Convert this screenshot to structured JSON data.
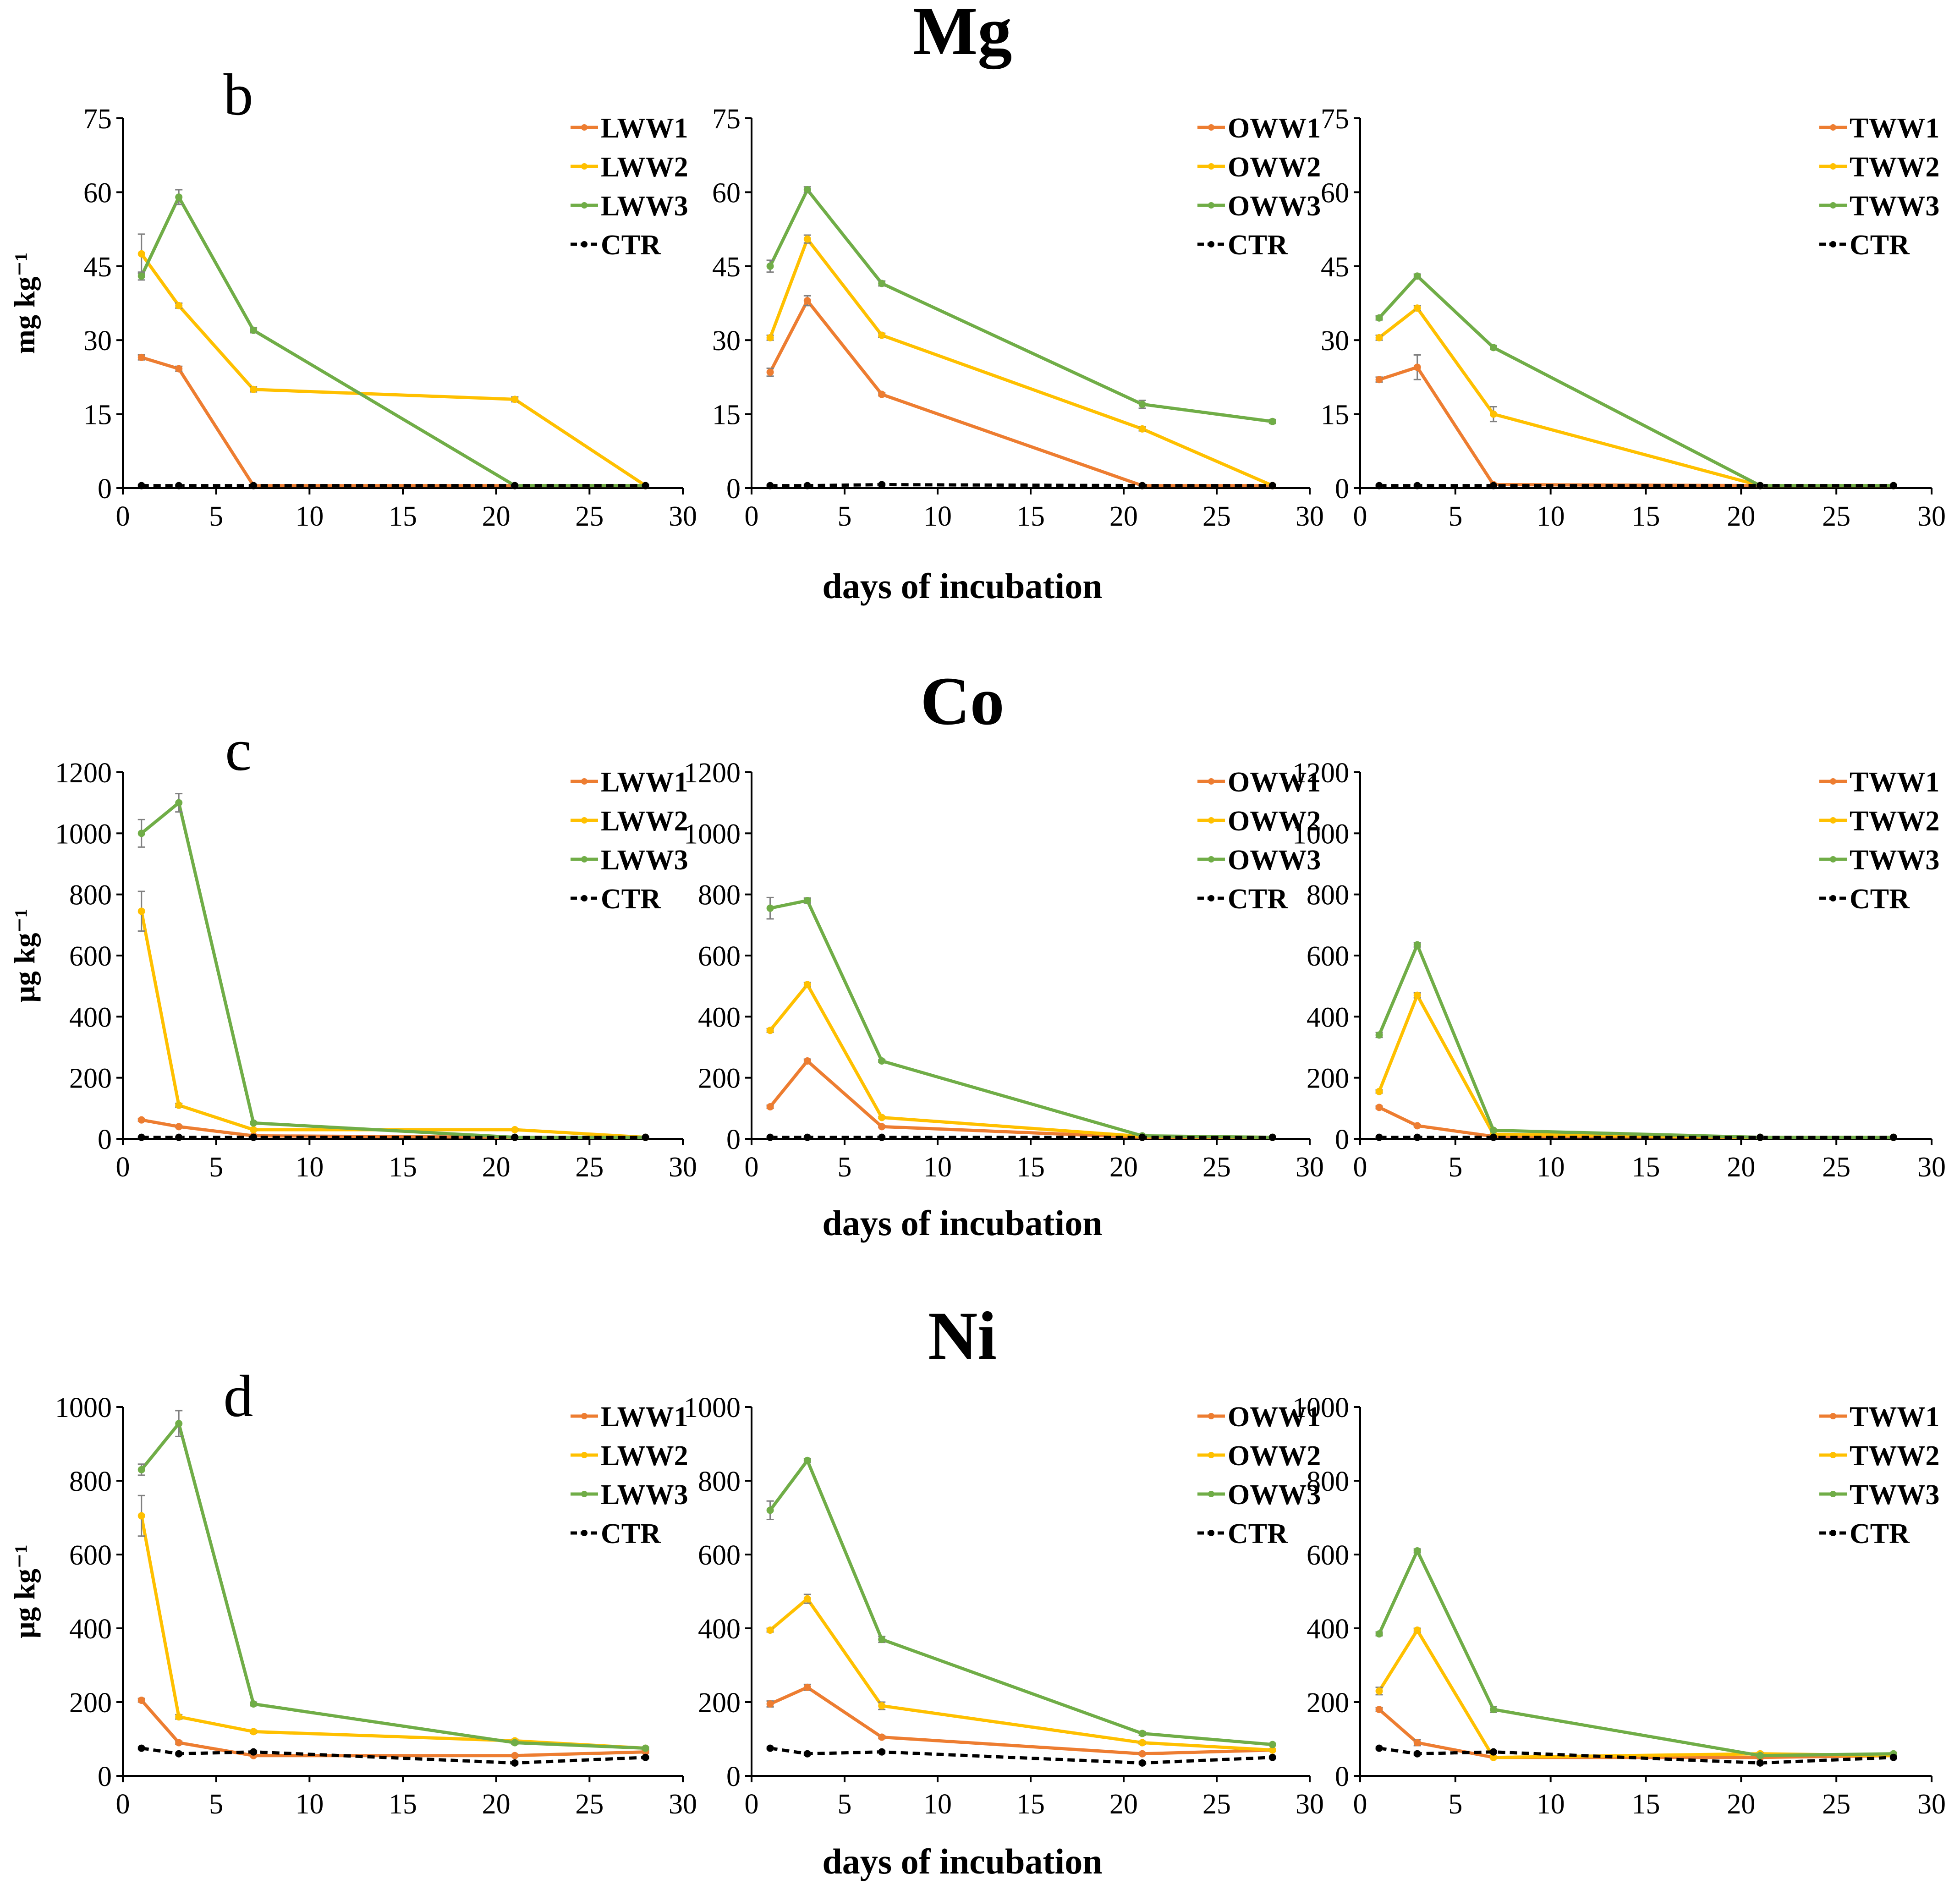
{
  "figure": {
    "x_axis_label": "days of incubation"
  },
  "colors": {
    "WW1": "#ED7D31",
    "WW2": "#FFC000",
    "WW3": "#70AD47",
    "CTR": "#000000"
  },
  "chart_data": [
    {
      "type": "line",
      "section_title": "Mg",
      "panel_letter": "b",
      "ylabel": "mg kg⁻¹",
      "xlim": [
        0,
        30
      ],
      "ylim": [
        0,
        75
      ],
      "xticks": [
        "0",
        "5",
        "10",
        "15",
        "20",
        "25",
        "30"
      ],
      "yticks": [
        "0",
        "15",
        "30",
        "45",
        "60",
        "75"
      ],
      "x": [
        1,
        3,
        7,
        21,
        28
      ],
      "series": [
        {
          "name": "LWW1",
          "values": [
            26.5,
            24.2,
            0.5,
            0.5,
            0.5
          ],
          "err": [
            0.5,
            0.5,
            0.2,
            0.2,
            0.2
          ]
        },
        {
          "name": "LWW2",
          "values": [
            47.5,
            37,
            20,
            18,
            0.5
          ],
          "err": [
            4,
            0.5,
            0.5,
            0.5,
            0.2
          ]
        },
        {
          "name": "LWW3",
          "values": [
            43,
            59,
            32,
            0.5,
            0.5
          ],
          "err": [
            0.8,
            1.5,
            0.5,
            0.2,
            0.2
          ]
        },
        {
          "name": "CTR",
          "values": [
            0.5,
            0.5,
            0.5,
            0.5,
            0.5
          ],
          "err": [
            0.2,
            0.2,
            0.2,
            0.2,
            0.2
          ]
        }
      ]
    },
    {
      "type": "line",
      "section_title": "",
      "panel_letter": "",
      "ylabel": "",
      "xlim": [
        0,
        30
      ],
      "ylim": [
        0,
        75
      ],
      "xticks": [
        "0",
        "5",
        "10",
        "15",
        "20",
        "25",
        "30"
      ],
      "yticks": [
        "0",
        "15",
        "30",
        "45",
        "60",
        "75"
      ],
      "x": [
        1,
        3,
        7,
        21,
        28
      ],
      "series": [
        {
          "name": "OWW1",
          "values": [
            23.5,
            38,
            19,
            0.5,
            0.5
          ],
          "err": [
            0.8,
            1,
            0.3,
            0.2,
            0.2
          ]
        },
        {
          "name": "OWW2",
          "values": [
            30.5,
            50.5,
            31,
            12,
            0.5
          ],
          "err": [
            0.5,
            0.8,
            0.4,
            0.4,
            0.2
          ]
        },
        {
          "name": "OWW3",
          "values": [
            45,
            60.5,
            41.5,
            17,
            13.5
          ],
          "err": [
            1.2,
            0.6,
            0.5,
            0.8,
            0.4
          ]
        },
        {
          "name": "CTR",
          "values": [
            0.5,
            0.5,
            0.7,
            0.5,
            0.5
          ],
          "err": [
            0.2,
            0.2,
            0.2,
            0.2,
            0.2
          ]
        }
      ]
    },
    {
      "type": "line",
      "section_title": "",
      "panel_letter": "",
      "ylabel": "",
      "xlim": [
        0,
        30
      ],
      "ylim": [
        0,
        75
      ],
      "xticks": [
        "0",
        "5",
        "10",
        "15",
        "20",
        "25",
        "30"
      ],
      "yticks": [
        "0",
        "15",
        "30",
        "45",
        "60",
        "75"
      ],
      "x": [
        1,
        3,
        7,
        21,
        28
      ],
      "series": [
        {
          "name": "TWW1",
          "values": [
            22,
            24.5,
            0.7,
            0.5,
            0.5
          ],
          "err": [
            0.5,
            2.5,
            0.2,
            0.2,
            0.2
          ]
        },
        {
          "name": "TWW2",
          "values": [
            30.5,
            36.5,
            15,
            0.5,
            0.5
          ],
          "err": [
            0.5,
            0.5,
            1.5,
            0.2,
            0.2
          ]
        },
        {
          "name": "TWW3",
          "values": [
            34.5,
            43,
            28.5,
            0.5,
            0.5
          ],
          "err": [
            0.4,
            0.4,
            0.4,
            0.2,
            0.2
          ]
        },
        {
          "name": "CTR",
          "values": [
            0.5,
            0.5,
            0.5,
            0.5,
            0.5
          ],
          "err": [
            0.2,
            0.2,
            0.2,
            0.2,
            0.2
          ]
        }
      ]
    },
    {
      "type": "line",
      "section_title": "Co",
      "panel_letter": "c",
      "ylabel": "μg kg⁻¹",
      "xlim": [
        0,
        30
      ],
      "ylim": [
        0,
        1200
      ],
      "xticks": [
        "0",
        "5",
        "10",
        "15",
        "20",
        "25",
        "30"
      ],
      "yticks": [
        "0",
        "200",
        "400",
        "600",
        "800",
        "1000",
        "1200"
      ],
      "x": [
        1,
        3,
        7,
        21,
        28
      ],
      "series": [
        {
          "name": "LWW1",
          "values": [
            62,
            40,
            10,
            5,
            5
          ],
          "err": [
            4,
            3,
            2,
            2,
            2
          ]
        },
        {
          "name": "LWW2",
          "values": [
            745,
            110,
            30,
            30,
            5
          ],
          "err": [
            65,
            6,
            3,
            3,
            2
          ]
        },
        {
          "name": "LWW3",
          "values": [
            1000,
            1100,
            52,
            5,
            5
          ],
          "err": [
            45,
            30,
            4,
            2,
            2
          ]
        },
        {
          "name": "CTR",
          "values": [
            5,
            5,
            5,
            5,
            5
          ],
          "err": [
            2,
            2,
            2,
            2,
            2
          ]
        }
      ]
    },
    {
      "type": "line",
      "section_title": "",
      "panel_letter": "",
      "ylabel": "",
      "xlim": [
        0,
        30
      ],
      "ylim": [
        0,
        1200
      ],
      "xticks": [
        "0",
        "5",
        "10",
        "15",
        "20",
        "25",
        "30"
      ],
      "yticks": [
        "0",
        "200",
        "400",
        "600",
        "800",
        "1000",
        "1200"
      ],
      "x": [
        1,
        3,
        7,
        21,
        28
      ],
      "series": [
        {
          "name": "OWW1",
          "values": [
            105,
            255,
            40,
            5,
            5
          ],
          "err": [
            5,
            6,
            3,
            2,
            2
          ]
        },
        {
          "name": "OWW2",
          "values": [
            355,
            505,
            70,
            8,
            5
          ],
          "err": [
            6,
            7,
            3,
            2,
            2
          ]
        },
        {
          "name": "OWW3",
          "values": [
            755,
            780,
            255,
            10,
            5
          ],
          "err": [
            35,
            8,
            4,
            2,
            2
          ]
        },
        {
          "name": "CTR",
          "values": [
            5,
            5,
            5,
            5,
            5
          ],
          "err": [
            2,
            2,
            2,
            2,
            2
          ]
        }
      ]
    },
    {
      "type": "line",
      "section_title": "",
      "panel_letter": "",
      "ylabel": "",
      "xlim": [
        0,
        30
      ],
      "ylim": [
        0,
        1200
      ],
      "xticks": [
        "0",
        "5",
        "10",
        "15",
        "20",
        "25",
        "30"
      ],
      "yticks": [
        "0",
        "200",
        "400",
        "600",
        "800",
        "1000",
        "1200"
      ],
      "x": [
        1,
        3,
        7,
        21,
        28
      ],
      "series": [
        {
          "name": "TWW1",
          "values": [
            103,
            43,
            8,
            5,
            5
          ],
          "err": [
            4,
            3,
            2,
            2,
            2
          ]
        },
        {
          "name": "TWW2",
          "values": [
            155,
            470,
            15,
            5,
            5
          ],
          "err": [
            5,
            8,
            2,
            2,
            2
          ]
        },
        {
          "name": "TWW3",
          "values": [
            340,
            635,
            28,
            5,
            5
          ],
          "err": [
            8,
            7,
            3,
            2,
            2
          ]
        },
        {
          "name": "CTR",
          "values": [
            5,
            5,
            5,
            5,
            5
          ],
          "err": [
            2,
            2,
            2,
            2,
            2
          ]
        }
      ]
    },
    {
      "type": "line",
      "section_title": "Ni",
      "panel_letter": "d",
      "ylabel": "μg kg⁻¹",
      "xlim": [
        0,
        30
      ],
      "ylim": [
        0,
        1000
      ],
      "xticks": [
        "0",
        "5",
        "10",
        "15",
        "20",
        "25",
        "30"
      ],
      "yticks": [
        "0",
        "200",
        "400",
        "600",
        "800",
        "1000"
      ],
      "x": [
        1,
        3,
        7,
        21,
        28
      ],
      "series": [
        {
          "name": "LWW1",
          "values": [
            205,
            90,
            55,
            55,
            65
          ],
          "err": [
            5,
            4,
            3,
            3,
            3
          ]
        },
        {
          "name": "LWW2",
          "values": [
            705,
            160,
            120,
            95,
            75
          ],
          "err": [
            55,
            6,
            4,
            4,
            3
          ]
        },
        {
          "name": "LWW3",
          "values": [
            830,
            955,
            195,
            90,
            75
          ],
          "err": [
            15,
            35,
            5,
            4,
            3
          ]
        },
        {
          "name": "CTR",
          "values": [
            75,
            60,
            65,
            35,
            50
          ],
          "err": [
            3,
            3,
            3,
            3,
            3
          ]
        }
      ]
    },
    {
      "type": "line",
      "section_title": "",
      "panel_letter": "",
      "ylabel": "",
      "xlim": [
        0,
        30
      ],
      "ylim": [
        0,
        1000
      ],
      "xticks": [
        "0",
        "5",
        "10",
        "15",
        "20",
        "25",
        "30"
      ],
      "yticks": [
        "0",
        "200",
        "400",
        "600",
        "800",
        "1000"
      ],
      "x": [
        1,
        3,
        7,
        21,
        28
      ],
      "series": [
        {
          "name": "OWW1",
          "values": [
            195,
            240,
            105,
            60,
            70
          ],
          "err": [
            8,
            8,
            4,
            3,
            3
          ]
        },
        {
          "name": "OWW2",
          "values": [
            395,
            480,
            190,
            90,
            70
          ],
          "err": [
            5,
            12,
            10,
            4,
            3
          ]
        },
        {
          "name": "OWW3",
          "values": [
            720,
            855,
            370,
            115,
            85
          ],
          "err": [
            25,
            5,
            8,
            5,
            3
          ]
        },
        {
          "name": "CTR",
          "values": [
            75,
            60,
            65,
            35,
            50
          ],
          "err": [
            3,
            3,
            3,
            3,
            3
          ]
        }
      ]
    },
    {
      "type": "line",
      "section_title": "",
      "panel_letter": "",
      "ylabel": "",
      "xlim": [
        0,
        30
      ],
      "ylim": [
        0,
        1000
      ],
      "xticks": [
        "0",
        "5",
        "10",
        "15",
        "20",
        "25",
        "30"
      ],
      "yticks": [
        "0",
        "200",
        "400",
        "600",
        "800",
        "1000"
      ],
      "x": [
        1,
        3,
        7,
        21,
        28
      ],
      "series": [
        {
          "name": "TWW1",
          "values": [
            180,
            90,
            50,
            50,
            55
          ],
          "err": [
            5,
            8,
            3,
            3,
            3
          ]
        },
        {
          "name": "TWW2",
          "values": [
            230,
            395,
            50,
            60,
            55
          ],
          "err": [
            10,
            5,
            3,
            3,
            3
          ]
        },
        {
          "name": "TWW3",
          "values": [
            385,
            610,
            180,
            55,
            60
          ],
          "err": [
            5,
            5,
            8,
            3,
            3
          ]
        },
        {
          "name": "CTR",
          "values": [
            75,
            60,
            65,
            35,
            50
          ],
          "err": [
            3,
            3,
            3,
            3,
            3
          ]
        }
      ]
    }
  ]
}
